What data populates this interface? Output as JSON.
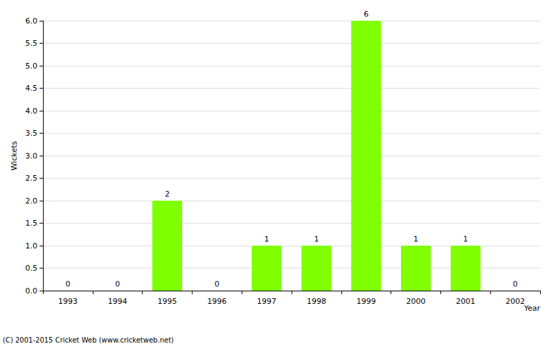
{
  "chart_data": {
    "type": "bar",
    "xlabel": "Year",
    "ylabel": "Wickets",
    "annotation": "(C) 2001-2015 Cricket Web (www.cricketweb.net)",
    "categories": [
      "1993",
      "1994",
      "1995",
      "1996",
      "1997",
      "1998",
      "1999",
      "2000",
      "2001",
      "2002"
    ],
    "values": [
      0,
      0,
      2,
      0,
      1,
      1,
      6,
      1,
      1,
      0
    ],
    "color": "#7fff00",
    "ylim": [
      0,
      6
    ],
    "yticks": [
      {
        "value": 0,
        "label": "0.0"
      },
      {
        "value": 0.5,
        "label": "0.5"
      },
      {
        "value": 1,
        "label": "1.0"
      },
      {
        "value": 1.5,
        "label": "1.5"
      },
      {
        "value": 2,
        "label": "2.0"
      },
      {
        "value": 2.5,
        "label": "2.5"
      },
      {
        "value": 3,
        "label": "3.0"
      },
      {
        "value": 3.5,
        "label": "3.5"
      },
      {
        "value": 4,
        "label": "4.0"
      },
      {
        "value": 4.5,
        "label": "4.5"
      },
      {
        "value": 5,
        "label": "5.0"
      },
      {
        "value": 5.5,
        "label": "5.5"
      },
      {
        "value": 6,
        "label": "6.0"
      }
    ],
    "grid": true,
    "data_labels": true
  }
}
